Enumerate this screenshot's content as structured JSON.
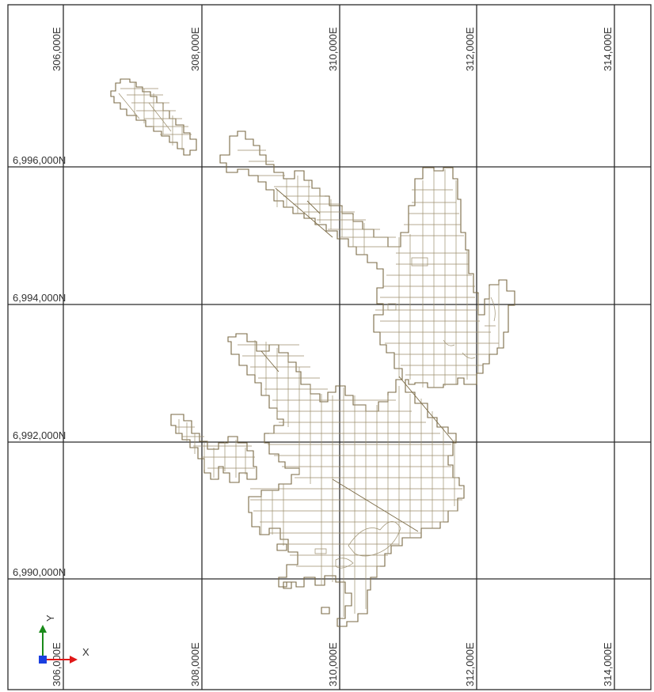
{
  "map": {
    "easting_labels": [
      "306,000E",
      "308,000E",
      "310,000E",
      "312,000E",
      "314,000E"
    ],
    "northing_labels": [
      "6,996,000N",
      "6,994,000N",
      "6,992,000N",
      "6,990,000N"
    ],
    "top_labels": [
      "306,000E",
      "308,000E",
      "310,000E",
      "312,000E",
      "314,000E"
    ],
    "bottom_labels": [
      "306,000E",
      "308,000E",
      "310,000E",
      "312,000E",
      "314,000E"
    ]
  },
  "axis_triad": {
    "y_label": "Y",
    "x_label": "X",
    "colors": {
      "y_axis": "#1a8a1a",
      "x_axis": "#e01818",
      "origin": "#1a3fe0"
    }
  },
  "colors": {
    "grid": "#2b2b2b",
    "parcel_outline": "#7a6a45",
    "parcel_inner": "#9c8f6e"
  }
}
